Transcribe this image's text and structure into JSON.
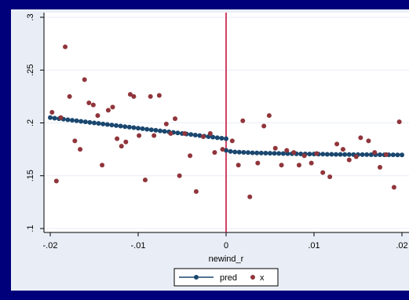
{
  "colors": {
    "frame": "#00007a",
    "outer_panel": "#e9eef6",
    "plot_bg": "#ffffff",
    "pred_line": "#1a476f",
    "x_points": "#90353b",
    "cutoff_line": "#c10534",
    "axis": "#000000",
    "grid": "#e9eef6"
  },
  "chart_data": {
    "type": "scatter",
    "title": "",
    "xlabel": "newind_r",
    "ylabel": "",
    "xlim": [
      -0.02,
      0.02
    ],
    "ylim": [
      0.1,
      0.3
    ],
    "x_ticks": [
      -0.02,
      -0.01,
      0,
      0.01,
      0.02
    ],
    "x_tick_labels": [
      "-.02",
      "-.01",
      "0",
      ".01",
      ".02"
    ],
    "y_ticks": [
      0.1,
      0.15,
      0.2,
      0.25,
      0.3
    ],
    "y_tick_labels": [
      ".1",
      ".15",
      ".2",
      ".25",
      ".3"
    ],
    "grid": "horizontal",
    "vertical_line_at": 0,
    "legend_position": "bottom",
    "legend": [
      "pred",
      "x"
    ],
    "series": [
      {
        "name": "pred",
        "type": "line",
        "marker": "circle",
        "segments": [
          {
            "x": [
              -0.02,
              -0.0195,
              -0.019,
              -0.0185,
              -0.018,
              -0.0175,
              -0.017,
              -0.0165,
              -0.016,
              -0.0155,
              -0.015,
              -0.0145,
              -0.014,
              -0.0135,
              -0.013,
              -0.0125,
              -0.012,
              -0.0115,
              -0.011,
              -0.0105,
              -0.01,
              -0.0095,
              -0.009,
              -0.0085,
              -0.008,
              -0.0075,
              -0.007,
              -0.0065,
              -0.006,
              -0.0055,
              -0.005,
              -0.0045,
              -0.004,
              -0.0035,
              -0.003,
              -0.0025,
              -0.002,
              -0.0015,
              -0.001,
              -0.0005,
              0
            ],
            "y": [
              0.205,
              0.2045,
              0.204,
              0.2035,
              0.203,
              0.2025,
              0.202,
              0.2015,
              0.201,
              0.2005,
              0.2,
              0.1995,
              0.199,
              0.1985,
              0.198,
              0.1975,
              0.197,
              0.1965,
              0.196,
              0.1955,
              0.195,
              0.1945,
              0.194,
              0.1935,
              0.193,
              0.1925,
              0.192,
              0.1915,
              0.191,
              0.1905,
              0.19,
              0.1895,
              0.189,
              0.1885,
              0.188,
              0.1875,
              0.187,
              0.1865,
              0.186,
              0.1855,
              0.185
            ]
          },
          {
            "x": [
              0,
              0.0005,
              0.001,
              0.0015,
              0.002,
              0.0025,
              0.003,
              0.0035,
              0.004,
              0.0045,
              0.005,
              0.0055,
              0.006,
              0.0065,
              0.007,
              0.0075,
              0.008,
              0.0085,
              0.009,
              0.0095,
              0.01,
              0.0105,
              0.011,
              0.0115,
              0.012,
              0.0125,
              0.013,
              0.0135,
              0.014,
              0.0145,
              0.015,
              0.0155,
              0.016,
              0.0165,
              0.017,
              0.0175,
              0.018,
              0.0185,
              0.019,
              0.0195,
              0.02
            ],
            "y": [
              0.174,
              0.173,
              0.1725,
              0.1723,
              0.1721,
              0.1719,
              0.1717,
              0.1716,
              0.1715,
              0.1714,
              0.1713,
              0.1712,
              0.1711,
              0.171,
              0.1709,
              0.1708,
              0.1707,
              0.1706,
              0.1706,
              0.1705,
              0.1705,
              0.1704,
              0.1704,
              0.1703,
              0.1703,
              0.1702,
              0.1702,
              0.1701,
              0.1701,
              0.17,
              0.17,
              0.17,
              0.17,
              0.1699,
              0.1699,
              0.1699,
              0.1698,
              0.1698,
              0.1698,
              0.1697,
              0.1697
            ]
          }
        ]
      },
      {
        "name": "x",
        "type": "scatter",
        "marker": "circle",
        "x": [
          -0.0198,
          -0.0193,
          -0.0188,
          -0.0183,
          -0.0178,
          -0.0172,
          -0.0166,
          -0.0161,
          -0.0156,
          -0.0151,
          -0.0146,
          -0.0141,
          -0.0134,
          -0.0129,
          -0.0124,
          -0.0119,
          -0.0114,
          -0.0109,
          -0.0105,
          -0.0099,
          -0.0092,
          -0.0086,
          -0.0082,
          -0.0076,
          -0.0068,
          -0.0063,
          -0.0058,
          -0.0053,
          -0.0047,
          -0.0041,
          -0.0034,
          -0.0026,
          -0.0018,
          -0.0013,
          -0.0004,
          0.0007,
          0.0014,
          0.0019,
          0.0027,
          0.0036,
          0.0043,
          0.0049,
          0.0056,
          0.0063,
          0.0069,
          0.0077,
          0.0083,
          0.0089,
          0.0097,
          0.0103,
          0.011,
          0.0118,
          0.0126,
          0.0133,
          0.014,
          0.0148,
          0.0153,
          0.0162,
          0.0169,
          0.0175,
          0.0182,
          0.0191,
          0.0197
        ],
        "y": [
          0.21,
          0.145,
          0.205,
          0.272,
          0.225,
          0.183,
          0.175,
          0.241,
          0.219,
          0.217,
          0.207,
          0.16,
          0.212,
          0.215,
          0.185,
          0.178,
          0.182,
          0.227,
          0.225,
          0.188,
          0.146,
          0.225,
          0.188,
          0.226,
          0.199,
          0.19,
          0.204,
          0.15,
          0.19,
          0.169,
          0.135,
          0.187,
          0.19,
          0.172,
          0.175,
          0.183,
          0.16,
          0.202,
          0.13,
          0.162,
          0.197,
          0.207,
          0.176,
          0.16,
          0.174,
          0.172,
          0.16,
          0.169,
          0.162,
          0.171,
          0.153,
          0.149,
          0.18,
          0.175,
          0.165,
          0.168,
          0.186,
          0.183,
          0.172,
          0.158,
          0.17,
          0.139,
          0.201
        ]
      }
    ]
  }
}
